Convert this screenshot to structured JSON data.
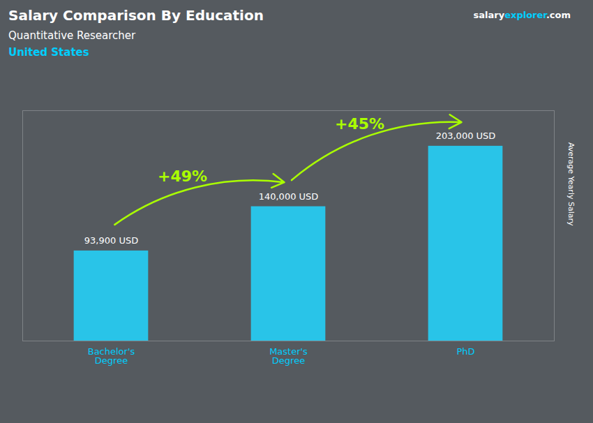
{
  "chart_data": {
    "type": "bar",
    "title": "Salary Comparison By Education",
    "subtitle": "Quantitative Researcher",
    "annotations": [
      {
        "text": "United States",
        "color": "#00CFFF"
      }
    ],
    "watermark": [
      {
        "text": "salary",
        "color": "#FFFFFF"
      },
      {
        "text": "explorer",
        "color": "#00CFFF"
      },
      {
        "text": ".com",
        "color": "#FFFFFF"
      }
    ],
    "ylabel": "Average Yearly Salary",
    "categories": [
      "Bachelor's\nDegree",
      "Master's\nDegree",
      "PhD"
    ],
    "values": [
      93900,
      140000,
      203000
    ],
    "value_labels": [
      "93,900 USD",
      "140,000 USD",
      "203,000 USD"
    ],
    "data_labels": true,
    "color": "#29C4E8",
    "tick_color": "#00CFFF",
    "background": "#555A5F",
    "ylim": [
      0,
      240000
    ],
    "tick_labels": "x",
    "grid": false,
    "increases": [
      {
        "text": "+49%",
        "from": "Bachelor's\nDegree",
        "to": "Master's\nDegree",
        "color": "#AAFF00"
      },
      {
        "text": "+45%",
        "from": "Master's\nDegree",
        "to": "PhD",
        "color": "#AAFF00"
      }
    ]
  }
}
